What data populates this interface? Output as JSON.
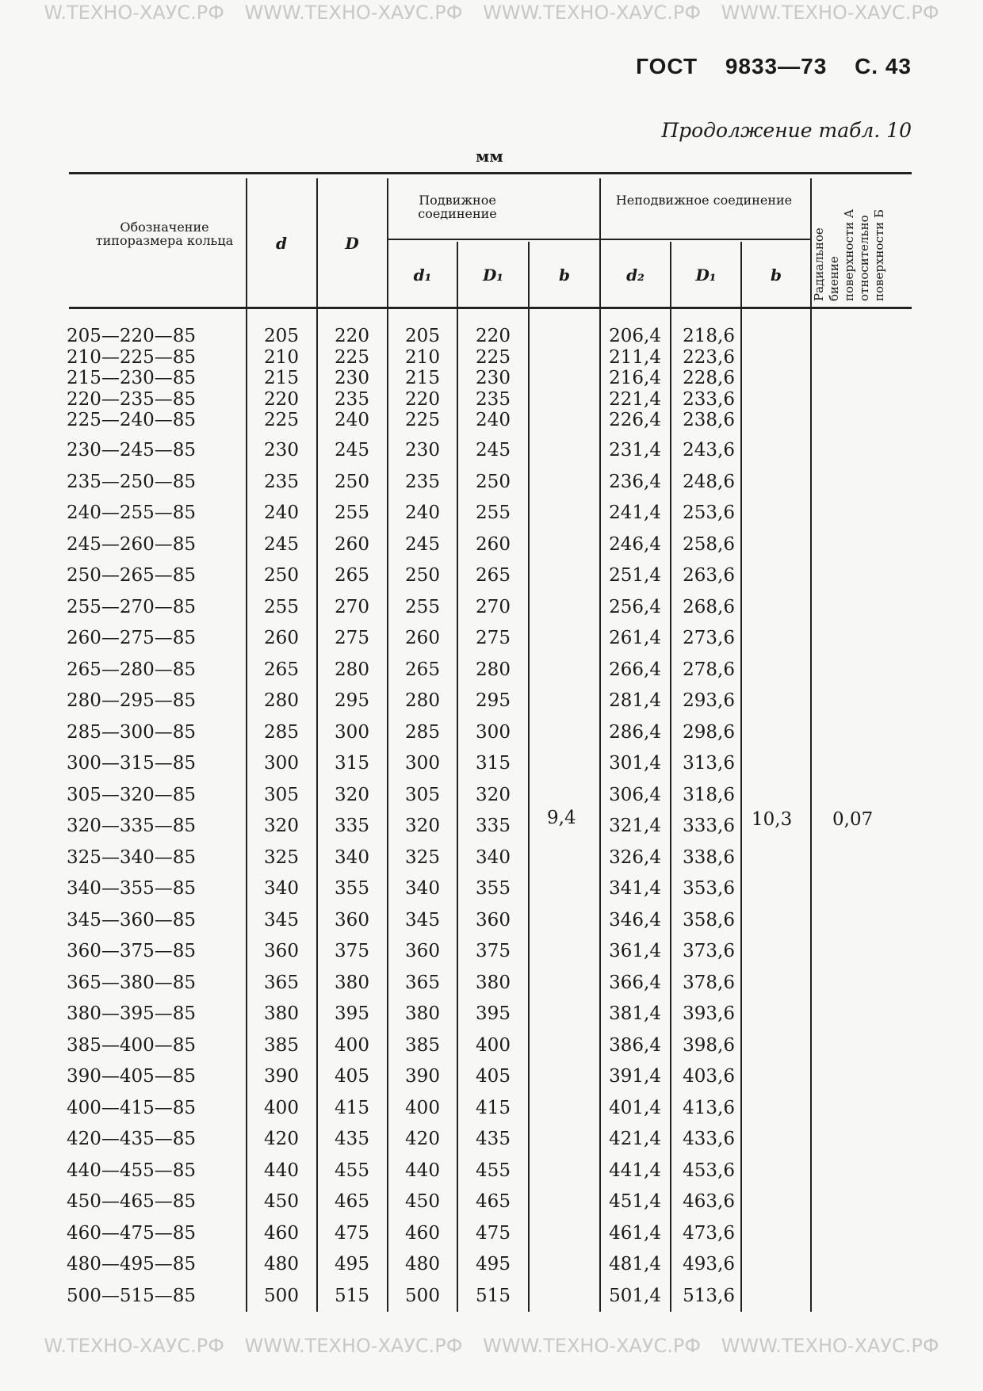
{
  "watermark": "W.ТЕХНО-ХАУС.РФ   WWW.ТЕХНО-ХАУС.РФ   WWW.ТЕХНО-ХАУС.РФ   WWW.ТЕХНО-ХАУС.РФ",
  "header": {
    "standard": "ГОСТ",
    "number": "9833—73",
    "page": "С. 43"
  },
  "caption": "Продолжение табл. 10",
  "units": "мм",
  "columns": {
    "designation": "Обозначение типоразмера кольца",
    "d": "d",
    "D": "D",
    "movable": "Подвижное соединение",
    "fixed": "Неподвижное соединение",
    "d1": "d₁",
    "D1": "D₁",
    "b": "b",
    "d2": "d₂",
    "D2": "D₁",
    "b2": "b",
    "radial": "Радиальное биение поверхности А относительно поверхности Б"
  },
  "merged": {
    "b_movable": "9,4",
    "b_fixed": "10,3",
    "radial": "0,07"
  },
  "rows": [
    [
      "205—220—85",
      "205",
      "220",
      "205",
      "220",
      "206,4",
      "218,6"
    ],
    [
      "210—225—85",
      "210",
      "225",
      "210",
      "225",
      "211,4",
      "223,6"
    ],
    [
      "215—230—85",
      "215",
      "230",
      "215",
      "230",
      "216,4",
      "228,6"
    ],
    [
      "220—235—85",
      "220",
      "235",
      "220",
      "235",
      "221,4",
      "233,6"
    ],
    [
      "225—240—85",
      "225",
      "240",
      "225",
      "240",
      "226,4",
      "238,6"
    ],
    [
      "230—245—85",
      "230",
      "245",
      "230",
      "245",
      "231,4",
      "243,6"
    ],
    [
      "235—250—85",
      "235",
      "250",
      "235",
      "250",
      "236,4",
      "248,6"
    ],
    [
      "240—255—85",
      "240",
      "255",
      "240",
      "255",
      "241,4",
      "253,6"
    ],
    [
      "245—260—85",
      "245",
      "260",
      "245",
      "260",
      "246,4",
      "258,6"
    ],
    [
      "250—265—85",
      "250",
      "265",
      "250",
      "265",
      "251,4",
      "263,6"
    ],
    [
      "255—270—85",
      "255",
      "270",
      "255",
      "270",
      "256,4",
      "268,6"
    ],
    [
      "260—275—85",
      "260",
      "275",
      "260",
      "275",
      "261,4",
      "273,6"
    ],
    [
      "265—280—85",
      "265",
      "280",
      "265",
      "280",
      "266,4",
      "278,6"
    ],
    [
      "280—295—85",
      "280",
      "295",
      "280",
      "295",
      "281,4",
      "293,6"
    ],
    [
      "285—300—85",
      "285",
      "300",
      "285",
      "300",
      "286,4",
      "298,6"
    ],
    [
      "300—315—85",
      "300",
      "315",
      "300",
      "315",
      "301,4",
      "313,6"
    ],
    [
      "305—320—85",
      "305",
      "320",
      "305",
      "320",
      "306,4",
      "318,6"
    ],
    [
      "320—335—85",
      "320",
      "335",
      "320",
      "335",
      "321,4",
      "333,6"
    ],
    [
      "325—340—85",
      "325",
      "340",
      "325",
      "340",
      "326,4",
      "338,6"
    ],
    [
      "340—355—85",
      "340",
      "355",
      "340",
      "355",
      "341,4",
      "353,6"
    ],
    [
      "345—360—85",
      "345",
      "360",
      "345",
      "360",
      "346,4",
      "358,6"
    ],
    [
      "360—375—85",
      "360",
      "375",
      "360",
      "375",
      "361,4",
      "373,6"
    ],
    [
      "365—380—85",
      "365",
      "380",
      "365",
      "380",
      "366,4",
      "378,6"
    ],
    [
      "380—395—85",
      "380",
      "395",
      "380",
      "395",
      "381,4",
      "393,6"
    ],
    [
      "385—400—85",
      "385",
      "400",
      "385",
      "400",
      "386,4",
      "398,6"
    ],
    [
      "390—405—85",
      "390",
      "405",
      "390",
      "405",
      "391,4",
      "403,6"
    ],
    [
      "400—415—85",
      "400",
      "415",
      "400",
      "415",
      "401,4",
      "413,6"
    ],
    [
      "420—435—85",
      "420",
      "435",
      "420",
      "435",
      "421,4",
      "433,6"
    ],
    [
      "440—455—85",
      "440",
      "455",
      "440",
      "455",
      "441,4",
      "453,6"
    ],
    [
      "450—465—85",
      "450",
      "465",
      "450",
      "465",
      "451,4",
      "463,6"
    ],
    [
      "460—475—85",
      "460",
      "475",
      "460",
      "475",
      "461,4",
      "473,6"
    ],
    [
      "480—495—85",
      "480",
      "495",
      "480",
      "495",
      "481,4",
      "493,6"
    ],
    [
      "500—515—85",
      "500",
      "515",
      "500",
      "515",
      "501,4",
      "513,6"
    ]
  ]
}
